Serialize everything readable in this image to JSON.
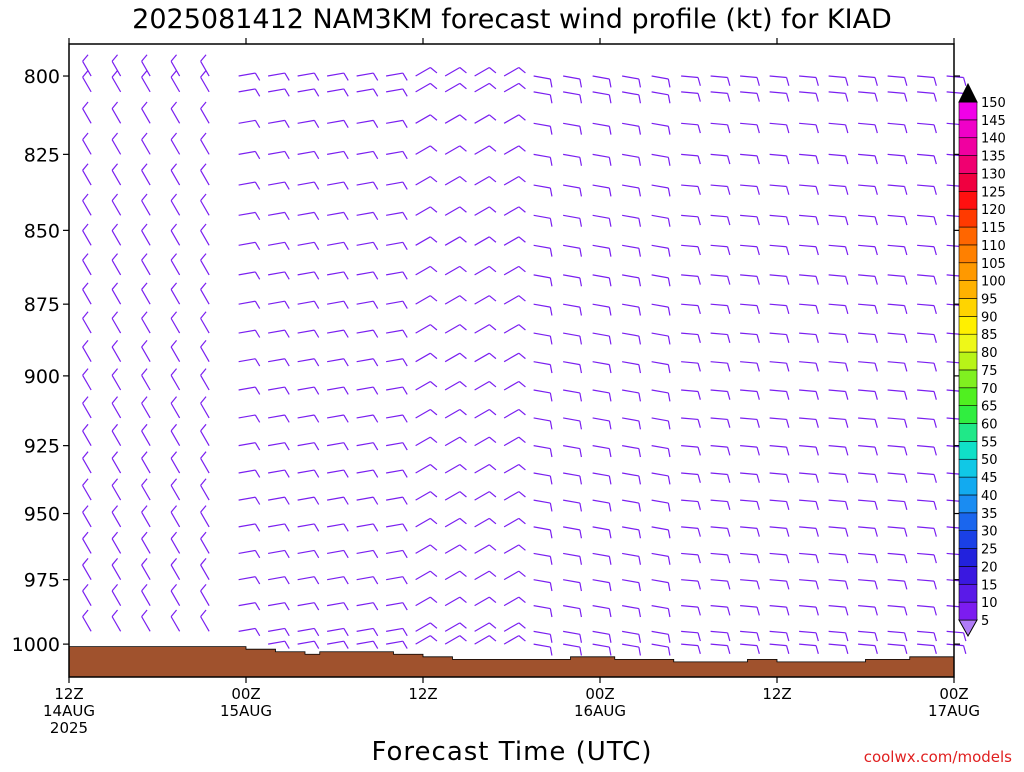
{
  "page": {
    "title": "2025081412 NAM3KM forecast wind profile (kt) for KIAD",
    "credit": "coolwx.com/models"
  },
  "chart_data": {
    "type": "wind-barb profile",
    "title": "2025081412 NAM3KM forecast wind profile (kt) for KIAD",
    "xlabel": "Forecast Time (UTC)",
    "ylabel": "",
    "x_ticks": [
      {
        "hour": 0,
        "lines": [
          "12Z",
          "14AUG",
          "2025"
        ]
      },
      {
        "hour": 12,
        "lines": [
          "00Z",
          "15AUG"
        ]
      },
      {
        "hour": 24,
        "lines": [
          "12Z"
        ]
      },
      {
        "hour": 36,
        "lines": [
          "00Z",
          "16AUG"
        ]
      },
      {
        "hour": 48,
        "lines": [
          "12Z"
        ]
      },
      {
        "hour": 60,
        "lines": [
          "00Z",
          "17AUG"
        ]
      }
    ],
    "x_range_hours": [
      0,
      60
    ],
    "y_ticks": [
      800,
      825,
      850,
      875,
      900,
      925,
      950,
      975,
      1000
    ],
    "ylim_hpa": [
      790,
      1013
    ],
    "y_scale": "log-pressure",
    "barb_color": "#7a1ff0",
    "barb_levels_hpa": [
      790,
      800,
      805,
      815,
      825,
      835,
      845,
      855,
      865,
      875,
      885,
      895,
      905,
      915,
      925,
      935,
      945,
      955,
      965,
      975,
      985,
      995,
      1000
    ],
    "barb_times_hours": [
      1.5,
      3.5,
      5.5,
      7.5,
      9.5,
      11.5,
      13.5,
      15.5,
      17.5,
      19.5,
      21.5,
      23.5,
      25.5,
      27.5,
      29.5,
      31.5,
      33.5,
      35.5,
      37.5,
      39.5,
      41.5,
      43.5,
      45.5,
      47.5,
      49.5,
      51.5,
      53.5,
      55.5,
      57.5,
      59.5
    ],
    "wind_regimes": [
      {
        "hours": [
          0,
          11
        ],
        "direction_deg": 330,
        "speed_kt": 10
      },
      {
        "hours": [
          11,
          22
        ],
        "direction_deg": 80,
        "speed_kt": 10
      },
      {
        "hours": [
          22,
          31
        ],
        "direction_deg": 60,
        "speed_kt": 10
      },
      {
        "hours": [
          31,
          40
        ],
        "direction_deg": 100,
        "speed_kt": 10
      },
      {
        "hours": [
          40,
          60
        ],
        "direction_deg": 95,
        "speed_kt": 10
      }
    ],
    "surface_pressure": [
      {
        "hour": 0,
        "hpa": 1001
      },
      {
        "hour": 11.5,
        "hpa": 1001
      },
      {
        "hour": 12,
        "hpa": 1002
      },
      {
        "hour": 14,
        "hpa": 1003
      },
      {
        "hour": 16,
        "hpa": 1004
      },
      {
        "hour": 17,
        "hpa": 1003
      },
      {
        "hour": 22,
        "hpa": 1004
      },
      {
        "hour": 24,
        "hpa": 1005
      },
      {
        "hour": 26,
        "hpa": 1006
      },
      {
        "hour": 34,
        "hpa": 1005
      },
      {
        "hour": 37,
        "hpa": 1006
      },
      {
        "hour": 41,
        "hpa": 1007
      },
      {
        "hour": 46,
        "hpa": 1006
      },
      {
        "hour": 48,
        "hpa": 1007
      },
      {
        "hour": 52,
        "hpa": 1007
      },
      {
        "hour": 54,
        "hpa": 1006
      },
      {
        "hour": 57,
        "hpa": 1005
      },
      {
        "hour": 60,
        "hpa": 1005
      }
    ],
    "terrain_color": "#a0522d",
    "colorbar": {
      "values": [
        5,
        10,
        15,
        20,
        25,
        30,
        35,
        40,
        45,
        50,
        55,
        60,
        65,
        70,
        75,
        80,
        85,
        90,
        95,
        100,
        105,
        110,
        115,
        120,
        125,
        130,
        135,
        140,
        145,
        150
      ],
      "colors": [
        "#7c1cf0",
        "#5a1ae8",
        "#3a18e0",
        "#2222dd",
        "#1a40e6",
        "#1a66ee",
        "#1a8cf2",
        "#12aaf0",
        "#10c8e6",
        "#10e0c8",
        "#20e888",
        "#30ee40",
        "#50f020",
        "#80f020",
        "#b8f418",
        "#eef818",
        "#fff000",
        "#ffd400",
        "#ffb200",
        "#ff9900",
        "#ff8000",
        "#ff6600",
        "#ff3a00",
        "#ff1010",
        "#f00040",
        "#f00070",
        "#f000a0",
        "#f000c8",
        "#f000e8",
        "#ff00ff"
      ],
      "top_arrow_color": "#000000",
      "bottom_arrow_color": "#b07cf8"
    }
  }
}
